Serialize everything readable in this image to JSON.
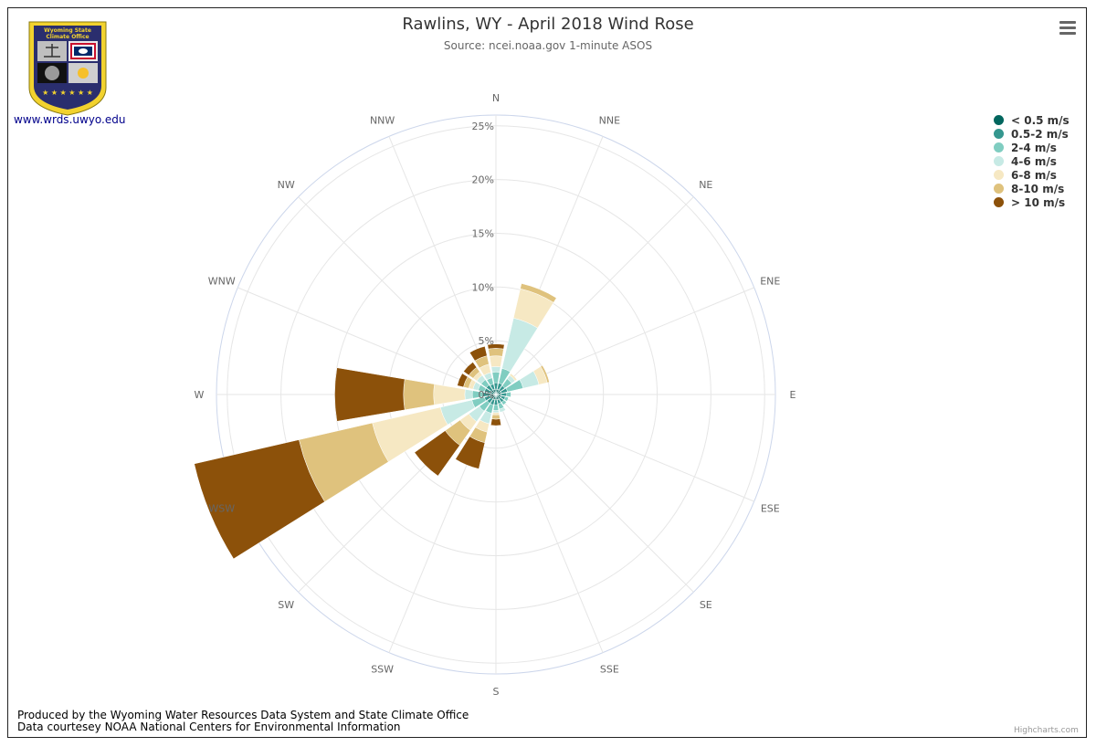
{
  "header": {
    "title": "Rawlins, WY - April 2018 Wind Rose",
    "subtitle": "Source: ncei.noaa.gov 1-minute ASOS"
  },
  "logo": {
    "line1": "Wyoming State",
    "line2": "Climate Office",
    "website": "www.wrds.uwyo.edu"
  },
  "footer": {
    "line1": "Produced by the Wyoming Water Resources Data System and State Climate Office",
    "line2": "Data courtesey NOAA National Centers for Environmental Information",
    "credit": "Highcharts.com"
  },
  "menu": {
    "icon": "hamburger-menu-icon"
  },
  "chart_data": {
    "type": "windrose",
    "title": "Rawlins, WY - April 2018 Wind Rose",
    "subtitle": "Source: ncei.noaa.gov 1-minute ASOS",
    "directions": [
      "N",
      "NNE",
      "NE",
      "ENE",
      "E",
      "ESE",
      "SE",
      "SSE",
      "S",
      "SSW",
      "SW",
      "WSW",
      "W",
      "WNW",
      "NW",
      "NNW"
    ],
    "radial_ticks": [
      "0%",
      "5%",
      "10%",
      "15%",
      "20%",
      "25%"
    ],
    "radial_max": 26,
    "stacking": "normal",
    "series": [
      {
        "name": "< 0.5 m/s",
        "color": "#01665e",
        "values": [
          0.5,
          0.5,
          0.5,
          0.5,
          0.5,
          0.5,
          0.5,
          0.5,
          0.5,
          0.5,
          0.5,
          0.5,
          0.5,
          0.5,
          0.5,
          0.5
        ]
      },
      {
        "name": "0.5-2 m/s",
        "color": "#35978f",
        "values": [
          0.6,
          0.6,
          0.5,
          0.6,
          0.5,
          0.4,
          0.4,
          0.4,
          0.5,
          0.5,
          0.5,
          0.6,
          0.7,
          0.6,
          0.6,
          0.5
        ]
      },
      {
        "name": "2-4 m/s",
        "color": "#80cdc1",
        "values": [
          1.0,
          1.4,
          0.8,
          1.5,
          0.4,
          0.3,
          0.3,
          0.5,
          0.5,
          0.8,
          0.9,
          1.2,
          1.0,
          0.6,
          0.6,
          0.6
        ]
      },
      {
        "name": "4-6 m/s",
        "color": "#c7eae5",
        "values": [
          0.5,
          4.8,
          0.4,
          1.5,
          0,
          0,
          0,
          0.3,
          0.2,
          1.0,
          1.2,
          3.0,
          0.7,
          0.5,
          0.5,
          0.5
        ]
      },
      {
        "name": "6-8 m/s",
        "color": "#f6e8c3",
        "values": [
          1.0,
          2.8,
          0.2,
          0.8,
          0,
          0,
          0,
          0,
          0.2,
          0.8,
          1.0,
          6.5,
          2.9,
          0.4,
          0.4,
          0.8
        ]
      },
      {
        "name": "8-10 m/s",
        "color": "#dfc27d",
        "values": [
          0.7,
          0.5,
          0,
          0.2,
          0,
          0,
          0,
          0,
          0.4,
          1.0,
          1.7,
          7.0,
          2.8,
          0.5,
          0.5,
          0.8
        ]
      },
      {
        "name": "> 10 m/s",
        "color": "#8c510a",
        "values": [
          0.4,
          0,
          0,
          0,
          0,
          0,
          0,
          0,
          0.6,
          2.5,
          3.5,
          10.0,
          6.4,
          0.6,
          0.6,
          0.9
        ]
      }
    ],
    "legend_position": "top-right",
    "grid": true
  }
}
